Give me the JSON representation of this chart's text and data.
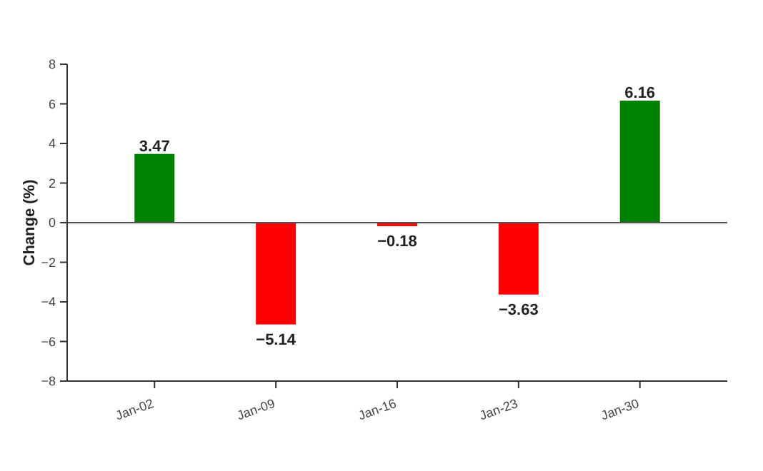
{
  "chart_data": {
    "type": "bar",
    "ylabel": "Change (%)",
    "categories": [
      "Jan-02",
      "Jan-09",
      "Jan-16",
      "Jan-23",
      "Jan-30"
    ],
    "values": [
      3.47,
      -5.14,
      -0.18,
      -3.63,
      6.16
    ],
    "colors": [
      "#008000",
      "#ff0000",
      "#ff0000",
      "#ff0000",
      "#008000"
    ],
    "ylim": [
      -8,
      8
    ],
    "yticks": [
      -8,
      -6,
      -4,
      -2,
      0,
      2,
      4,
      6,
      8
    ],
    "ref_lines": [
      {
        "axis": "y",
        "value": 0,
        "color": "#555555"
      }
    ],
    "data_labels": true,
    "grid": false
  }
}
